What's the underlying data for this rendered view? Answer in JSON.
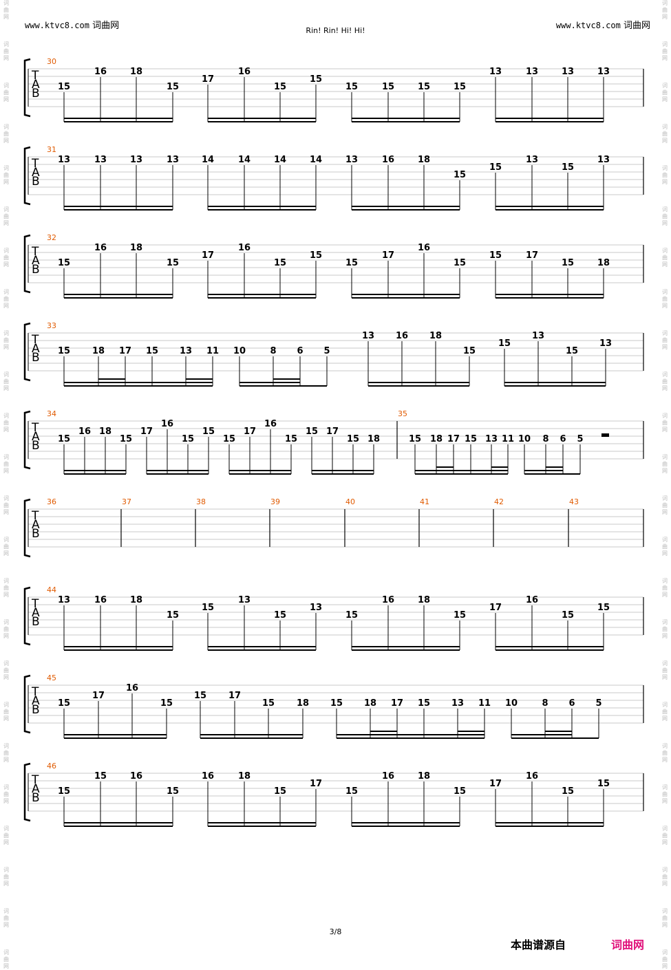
{
  "header": {
    "left_site": "www.ktvc8.com",
    "left_brand": "词曲网",
    "right_site": "www.ktvc8.com",
    "right_brand": "词曲网",
    "title": "Rin! Rin! Hi! Hi!"
  },
  "footer": {
    "page": "3/8",
    "source_label": "本曲谱源自",
    "brand": "词曲网"
  },
  "watermark_chars": [
    "词",
    "曲",
    "网"
  ],
  "colors": {
    "measure_number": "#e05a00",
    "footer_brand": "#e0107a",
    "staff_lines": "#c8c8c8"
  },
  "tab_letters": [
    "T",
    "A",
    "B"
  ],
  "systems": [
    {
      "measures": [
        "30"
      ],
      "groups": [
        {
          "notes": [
            [
              "15",
              2
            ],
            [
              "16",
              0
            ],
            [
              "18",
              0
            ],
            [
              "15",
              2
            ]
          ]
        },
        {
          "notes": [
            [
              "17",
              1
            ],
            [
              "16",
              0
            ],
            [
              "15",
              2
            ],
            [
              "15",
              1
            ]
          ]
        },
        {
          "notes": [
            [
              "15",
              2
            ],
            [
              "15",
              2
            ],
            [
              "15",
              2
            ],
            [
              "15",
              2
            ]
          ]
        },
        {
          "notes": [
            [
              "13",
              0
            ],
            [
              "13",
              0
            ],
            [
              "13",
              0
            ],
            [
              "13",
              0
            ]
          ]
        }
      ]
    },
    {
      "measures": [
        "31"
      ],
      "groups": [
        {
          "notes": [
            [
              "13",
              0
            ],
            [
              "13",
              0
            ],
            [
              "13",
              0
            ],
            [
              "13",
              0
            ]
          ]
        },
        {
          "notes": [
            [
              "14",
              0
            ],
            [
              "14",
              0
            ],
            [
              "14",
              0
            ],
            [
              "14",
              0
            ]
          ]
        },
        {
          "notes": [
            [
              "13",
              0
            ],
            [
              "16",
              0
            ],
            [
              "18",
              0
            ],
            [
              "15",
              2
            ]
          ]
        },
        {
          "notes": [
            [
              "15",
              1
            ],
            [
              "13",
              0
            ],
            [
              "15",
              1
            ],
            [
              "13",
              0
            ]
          ]
        }
      ]
    },
    {
      "measures": [
        "32"
      ],
      "groups": [
        {
          "notes": [
            [
              "15",
              2
            ],
            [
              "16",
              0
            ],
            [
              "18",
              0
            ],
            [
              "15",
              2
            ]
          ]
        },
        {
          "notes": [
            [
              "17",
              1
            ],
            [
              "16",
              0
            ],
            [
              "15",
              2
            ],
            [
              "15",
              1
            ]
          ]
        },
        {
          "notes": [
            [
              "15",
              2
            ],
            [
              "17",
              1
            ],
            [
              "16",
              0
            ],
            [
              "15",
              2
            ]
          ]
        },
        {
          "notes": [
            [
              "15",
              1
            ],
            [
              "17",
              1
            ],
            [
              "15",
              2
            ],
            [
              "18",
              2
            ]
          ]
        }
      ]
    },
    {
      "measures": [
        "33"
      ],
      "groups": [
        {
          "notes": [
            [
              "15",
              2
            ],
            [
              "18",
              2
            ],
            [
              "17",
              2
            ],
            [
              "15",
              2
            ],
            [
              "13",
              2
            ],
            [
              "11",
              2
            ]
          ]
        },
        {
          "notes": [
            [
              "10",
              2
            ],
            [
              "8",
              2
            ],
            [
              "6",
              2
            ],
            [
              "5",
              2
            ]
          ]
        },
        {
          "notes": [
            [
              "13",
              0
            ],
            [
              "16",
              0
            ],
            [
              "18",
              0
            ],
            [
              "15",
              2
            ]
          ]
        },
        {
          "notes": [
            [
              "15",
              1
            ],
            [
              "13",
              0
            ],
            [
              "15",
              2
            ],
            [
              "13",
              1
            ]
          ]
        }
      ]
    },
    {
      "measures": [
        "34",
        "35"
      ],
      "groups": [
        {
          "notes": [
            [
              "15",
              2
            ],
            [
              "16",
              1
            ],
            [
              "18",
              1
            ],
            [
              "15",
              2
            ]
          ]
        },
        {
          "notes": [
            [
              "17",
              1
            ],
            [
              "16",
              0
            ],
            [
              "15",
              2
            ],
            [
              "15",
              1
            ]
          ]
        },
        {
          "notes": [
            [
              "15",
              2
            ],
            [
              "17",
              1
            ],
            [
              "16",
              0
            ],
            [
              "15",
              2
            ]
          ]
        },
        {
          "notes": [
            [
              "15",
              1
            ],
            [
              "17",
              1
            ],
            [
              "15",
              2
            ],
            [
              "18",
              2
            ]
          ]
        },
        {
          "notes": [
            [
              "15",
              2
            ],
            [
              "18",
              2
            ],
            [
              "17",
              2
            ],
            [
              "15",
              2
            ],
            [
              "13",
              2
            ],
            [
              "11",
              2
            ]
          ]
        },
        {
          "notes": [
            [
              "10",
              2
            ],
            [
              "8",
              2
            ],
            [
              "6",
              2
            ],
            [
              "5",
              2
            ]
          ]
        }
      ]
    },
    {
      "measures": [
        "36",
        "37",
        "38",
        "39",
        "40",
        "41",
        "42",
        "43"
      ],
      "groups": []
    },
    {
      "measures": [
        "44"
      ],
      "groups": [
        {
          "notes": [
            [
              "13",
              0
            ],
            [
              "16",
              0
            ],
            [
              "18",
              0
            ],
            [
              "15",
              2
            ]
          ]
        },
        {
          "notes": [
            [
              "15",
              1
            ],
            [
              "13",
              0
            ],
            [
              "15",
              2
            ],
            [
              "13",
              1
            ]
          ]
        },
        {
          "notes": [
            [
              "15",
              2
            ],
            [
              "16",
              0
            ],
            [
              "18",
              0
            ],
            [
              "15",
              2
            ]
          ]
        },
        {
          "notes": [
            [
              "17",
              1
            ],
            [
              "16",
              0
            ],
            [
              "15",
              2
            ],
            [
              "15",
              1
            ]
          ]
        }
      ]
    },
    {
      "measures": [
        "45"
      ],
      "groups": [
        {
          "notes": [
            [
              "15",
              2
            ],
            [
              "17",
              1
            ],
            [
              "16",
              0
            ],
            [
              "15",
              2
            ]
          ]
        },
        {
          "notes": [
            [
              "15",
              1
            ],
            [
              "17",
              1
            ],
            [
              "15",
              2
            ],
            [
              "18",
              2
            ]
          ]
        },
        {
          "notes": [
            [
              "15",
              2
            ],
            [
              "18",
              2
            ],
            [
              "17",
              2
            ],
            [
              "15",
              2
            ],
            [
              "13",
              2
            ],
            [
              "11",
              2
            ]
          ]
        },
        {
          "notes": [
            [
              "10",
              2
            ],
            [
              "8",
              2
            ],
            [
              "6",
              2
            ],
            [
              "5",
              2
            ]
          ]
        }
      ]
    },
    {
      "measures": [
        "46"
      ],
      "groups": [
        {
          "notes": [
            [
              "15",
              2
            ],
            [
              "15",
              0
            ],
            [
              "16",
              0
            ],
            [
              "15",
              2
            ]
          ]
        },
        {
          "notes": [
            [
              "16",
              0
            ],
            [
              "18",
              0
            ],
            [
              "15",
              2
            ],
            [
              "17",
              1
            ]
          ]
        },
        {
          "notes": [
            [
              "15",
              2
            ],
            [
              "16",
              0
            ],
            [
              "18",
              0
            ],
            [
              "15",
              2
            ]
          ]
        },
        {
          "notes": [
            [
              "17",
              1
            ],
            [
              "16",
              0
            ],
            [
              "15",
              2
            ],
            [
              "15",
              1
            ]
          ]
        }
      ]
    }
  ]
}
